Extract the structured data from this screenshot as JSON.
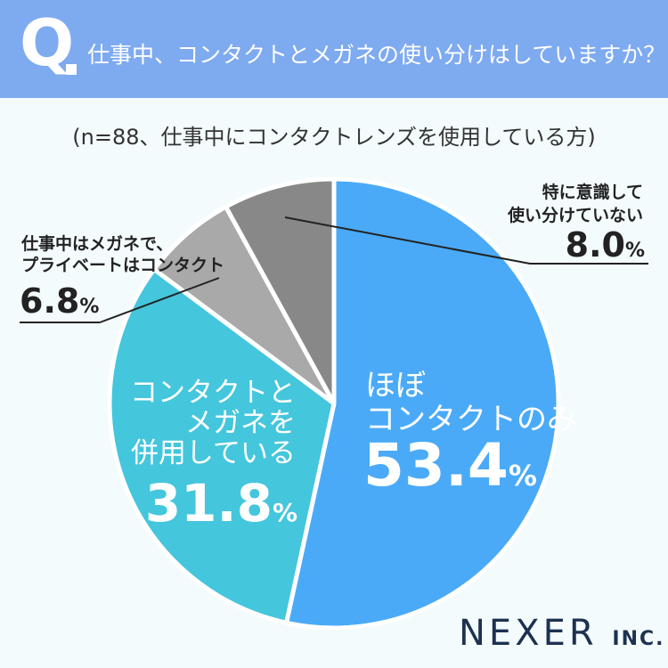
{
  "header": {
    "q_mark": "Q",
    "question": "仕事中、コンタクトとメガネの使い分けはしていますか？"
  },
  "subtitle": "(n=88、仕事中にコンタクトレンズを使用している方)",
  "brand": {
    "name": "NEXER",
    "suffix": "INC."
  },
  "colors": {
    "header_bg": "#7eaaf0",
    "contact_only": "#4aaaf8",
    "both": "#44c6dc",
    "weekday_glasses": "#a9a9a9",
    "not_switching": "#888888"
  },
  "chart_data": {
    "type": "pie",
    "start": "12 o'clock",
    "direction": "clockwise",
    "slices": [
      {
        "label_lines": [
          "ほぼ",
          "コンタクトのみ"
        ],
        "value": 53.4,
        "value_text": "53.4",
        "unit": "%",
        "color": "#4aaaf8"
      },
      {
        "label_lines": [
          "コンタクトと",
          "メガネを",
          "併用している"
        ],
        "value": 31.8,
        "value_text": "31.8",
        "unit": "%",
        "color": "#44c6dc"
      },
      {
        "label_lines": [
          "仕事中はメガネで、",
          "プライベートはコンタクト"
        ],
        "value": 6.8,
        "value_text": "6.8",
        "unit": "%",
        "color": "#a9a9a9"
      },
      {
        "label_lines": [
          "特に意識して",
          "使い分けていない"
        ],
        "value": 8.0,
        "value_text": "8.0",
        "unit": "%",
        "color": "#888888"
      }
    ]
  }
}
